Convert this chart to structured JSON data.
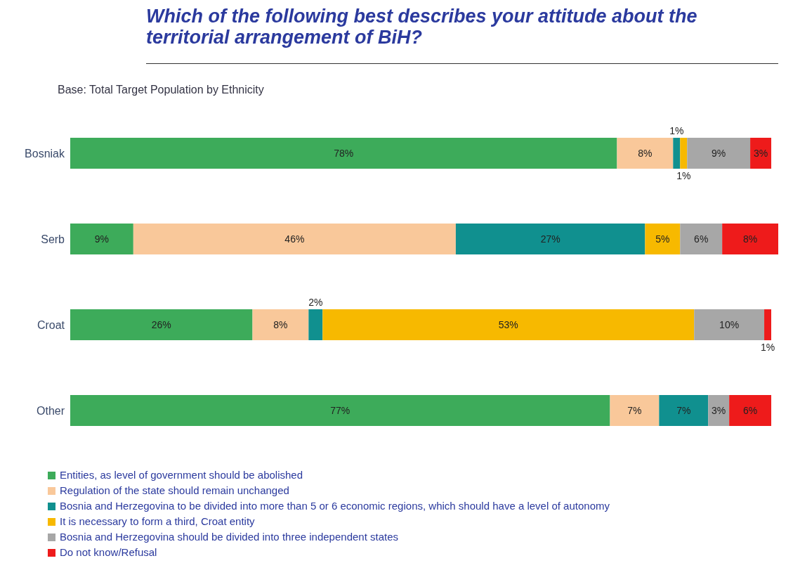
{
  "chart_data": {
    "type": "bar",
    "orientation": "horizontal",
    "stacked": true,
    "title": "Which of the following best describes your attitude about the territorial arrangement of BiH?",
    "subtitle": "Base: Total Target Population by Ethnicity",
    "categories": [
      "Bosniak",
      "Serb",
      "Croat",
      "Other"
    ],
    "legend": "bottom left",
    "series": [
      {
        "name": "Entities, as level of government should be abolished",
        "color": "#3dab5a",
        "values": [
          78,
          9,
          26,
          77
        ],
        "value_labels": [
          "78%",
          "9%",
          "26%",
          "77%"
        ]
      },
      {
        "name": "Regulation of the state should remain unchanged",
        "color": "#f9c89a",
        "values": [
          8,
          46,
          8,
          7
        ],
        "value_labels": [
          "8%",
          "46%",
          "8%",
          "7%"
        ]
      },
      {
        "name": "Bosnia and Herzegovina to be divided into more than 5 or 6 economic regions, which should have a level of autonomy",
        "color": "#10908f",
        "values": [
          1,
          27,
          2,
          7
        ],
        "value_labels": [
          "1%",
          "27%",
          "2%",
          "7%"
        ]
      },
      {
        "name": "It is necessary to form a third, Croat entity",
        "color": "#f7b900",
        "values": [
          1,
          5,
          53,
          null
        ],
        "value_labels": [
          "1%",
          "5%",
          "53%",
          null
        ]
      },
      {
        "name": "Bosnia and Herzegovina should be divided into three independent states",
        "color": "#a7a7a7",
        "values": [
          9,
          6,
          10,
          3
        ],
        "value_labels": [
          "9%",
          "6%",
          "10%",
          "3%"
        ]
      },
      {
        "name": "Do not know/Refusal",
        "color": "#ee1b1b",
        "values": [
          3,
          8,
          1,
          6
        ],
        "value_labels": [
          "3%",
          "8%",
          "1%",
          "6%"
        ]
      }
    ]
  }
}
